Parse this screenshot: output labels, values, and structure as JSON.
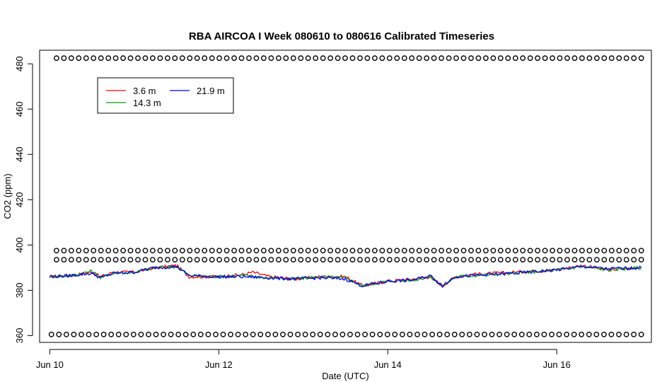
{
  "chart_data": {
    "type": "line",
    "title": "RBA AIRCOA I  Week 080610 to 080616  Calibrated Timeseries",
    "xlabel": "Date (UTC)",
    "ylabel": "CO2 (ppm)",
    "xlim": [
      -0.12,
      7.12
    ],
    "ylim": [
      357,
      486
    ],
    "x_ticks": [
      {
        "value": 0,
        "label": "Jun 10"
      },
      {
        "value": 2,
        "label": "Jun 12"
      },
      {
        "value": 4,
        "label": "Jun 14"
      },
      {
        "value": 6,
        "label": "Jun 16"
      }
    ],
    "y_ticks": [
      360,
      380,
      400,
      420,
      440,
      460,
      480
    ],
    "legend": {
      "position": "top-left",
      "entries": [
        {
          "label": "3.6 m",
          "color": "#ff0000"
        },
        {
          "label": "14.3 m",
          "color": "#00a000"
        },
        {
          "label": "21.9 m",
          "color": "#0000ff"
        }
      ]
    },
    "series": [
      {
        "name": "3.6 m",
        "color": "#ff0000",
        "x": [
          0,
          0.25,
          0.5,
          0.6,
          0.75,
          1.0,
          1.25,
          1.5,
          1.65,
          2.0,
          2.3,
          2.4,
          2.6,
          2.9,
          3.2,
          3.5,
          3.7,
          4.0,
          4.3,
          4.5,
          4.65,
          4.8,
          5.0,
          5.5,
          6.0,
          6.3,
          6.6,
          7.0
        ],
        "y": [
          386,
          386.5,
          388,
          386,
          388,
          388,
          390,
          391,
          386,
          386,
          387,
          388,
          386,
          385,
          386,
          386,
          382,
          384,
          385,
          386,
          382,
          386,
          387,
          388,
          389,
          391,
          389,
          390
        ]
      },
      {
        "name": "14.3 m",
        "color": "#00a000",
        "x": [
          0,
          0.25,
          0.5,
          0.6,
          0.75,
          1.0,
          1.25,
          1.5,
          1.65,
          2.0,
          2.3,
          2.6,
          2.9,
          3.2,
          3.5,
          3.7,
          4.0,
          4.3,
          4.5,
          4.65,
          4.8,
          5.0,
          5.5,
          6.0,
          6.3,
          6.6,
          7.0
        ],
        "y": [
          386,
          386.5,
          388.5,
          385.5,
          387.5,
          388,
          390,
          390.5,
          386.5,
          386,
          386.5,
          385.5,
          385,
          386,
          385.5,
          382,
          384,
          384.5,
          386,
          382,
          386,
          386.5,
          387.5,
          389,
          390.5,
          389,
          390
        ]
      },
      {
        "name": "21.9 m",
        "color": "#0000ff",
        "x": [
          0,
          0.25,
          0.5,
          0.6,
          0.75,
          1.0,
          1.25,
          1.5,
          1.65,
          2.0,
          2.3,
          2.6,
          2.9,
          3.2,
          3.5,
          3.7,
          4.0,
          4.3,
          4.5,
          4.65,
          4.8,
          5.0,
          5.5,
          6.0,
          6.3,
          6.6,
          7.0
        ],
        "y": [
          386,
          386.5,
          387.5,
          385.5,
          387.5,
          388,
          390,
          390.5,
          386.5,
          386,
          386,
          385.5,
          385,
          385.5,
          385,
          382,
          384,
          384.5,
          386.5,
          382,
          386,
          386.5,
          387.5,
          389,
          390.5,
          389.5,
          390
        ]
      }
    ],
    "marker_rows": [
      {
        "y": 482.5,
        "x_start": 0.08,
        "x_end": 7.0,
        "count": 80
      },
      {
        "y": 397.5,
        "x_start": 0.08,
        "x_end": 7.0,
        "count": 80
      },
      {
        "y": 393.5,
        "x_start": 0.08,
        "x_end": 7.0,
        "count": 80
      },
      {
        "y": 360.5,
        "x_start": 0.02,
        "x_end": 7.0,
        "count": 80
      }
    ]
  }
}
